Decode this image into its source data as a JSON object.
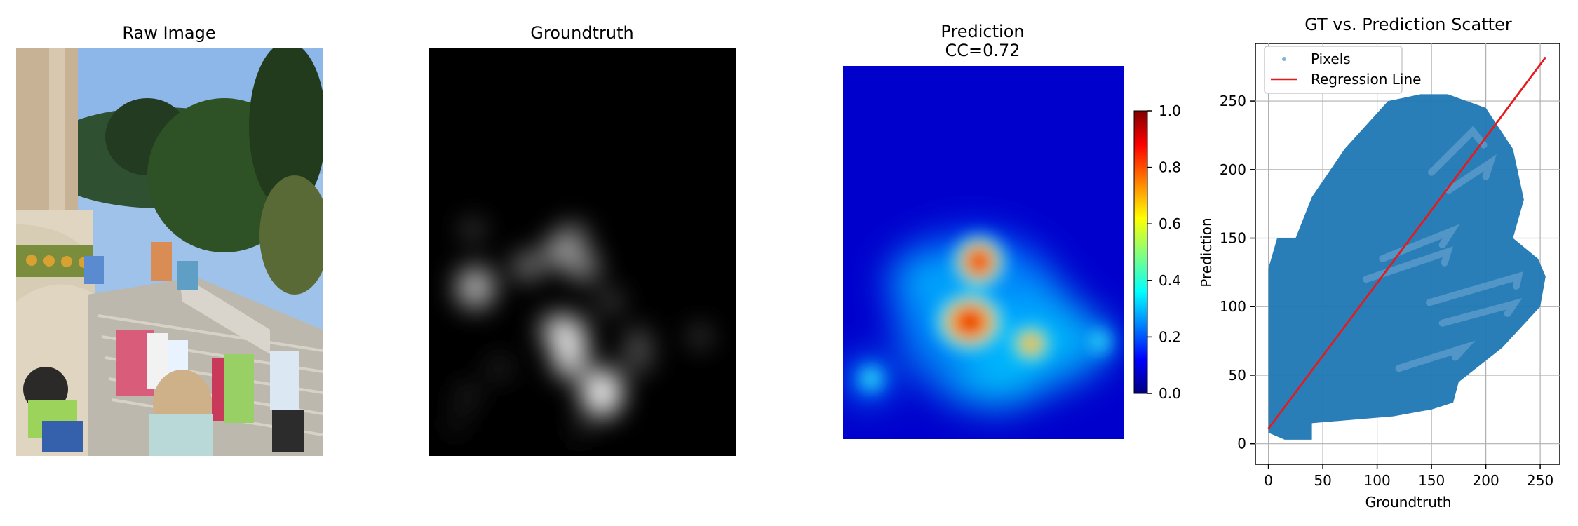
{
  "panels": {
    "raw": {
      "title": "Raw Image"
    },
    "groundtruth": {
      "title": "Groundtruth"
    },
    "prediction": {
      "title_line1": "Prediction",
      "title_line2": "CC=0.72"
    },
    "scatter": {
      "title": "GT vs. Prediction Scatter"
    }
  },
  "colors": {
    "sky": "#8fb8e6",
    "prediction_bg": "#0000c8",
    "scatter_blue": "#1f77b4",
    "regression_red": "#e41a1c"
  },
  "chart_data": [
    {
      "type": "heatmap",
      "title": "Prediction\nCC=0.72",
      "colorbar": {
        "min": 0.0,
        "max": 1.0,
        "ticks": [
          0.0,
          0.2,
          0.4,
          0.6,
          0.8,
          1.0
        ],
        "tick_labels": [
          "0.0",
          "0.2",
          "0.4",
          "0.6",
          "0.8",
          "1.0"
        ]
      }
    },
    {
      "type": "scatter",
      "title": "GT vs. Prediction Scatter",
      "xlabel": "Groundtruth",
      "ylabel": "Prediction",
      "xlim": [
        -12,
        268
      ],
      "ylim": [
        -15,
        292
      ],
      "xticks": [
        0,
        50,
        100,
        150,
        200,
        250
      ],
      "yticks": [
        0,
        50,
        100,
        150,
        200,
        250
      ],
      "grid": true,
      "legend_position": "top-left",
      "series": [
        {
          "name": "Pixels",
          "kind": "points",
          "region": [
            [
              0,
              8
            ],
            [
              0,
              128
            ],
            [
              8,
              150
            ],
            [
              25,
              150
            ],
            [
              40,
              180
            ],
            [
              70,
              215
            ],
            [
              110,
              250
            ],
            [
              140,
              255
            ],
            [
              165,
              255
            ],
            [
              200,
              245
            ],
            [
              225,
              215
            ],
            [
              235,
              178
            ],
            [
              225,
              150
            ],
            [
              248,
              135
            ],
            [
              255,
              122
            ],
            [
              250,
              100
            ],
            [
              215,
              70
            ],
            [
              175,
              45
            ],
            [
              170,
              30
            ],
            [
              150,
              25
            ],
            [
              115,
              20
            ],
            [
              40,
              15
            ],
            [
              40,
              3
            ],
            [
              15,
              3
            ],
            [
              0,
              8
            ]
          ]
        },
        {
          "name": "Regression Line",
          "kind": "line",
          "x": [
            0,
            255
          ],
          "y": [
            11,
            282
          ]
        }
      ]
    }
  ]
}
